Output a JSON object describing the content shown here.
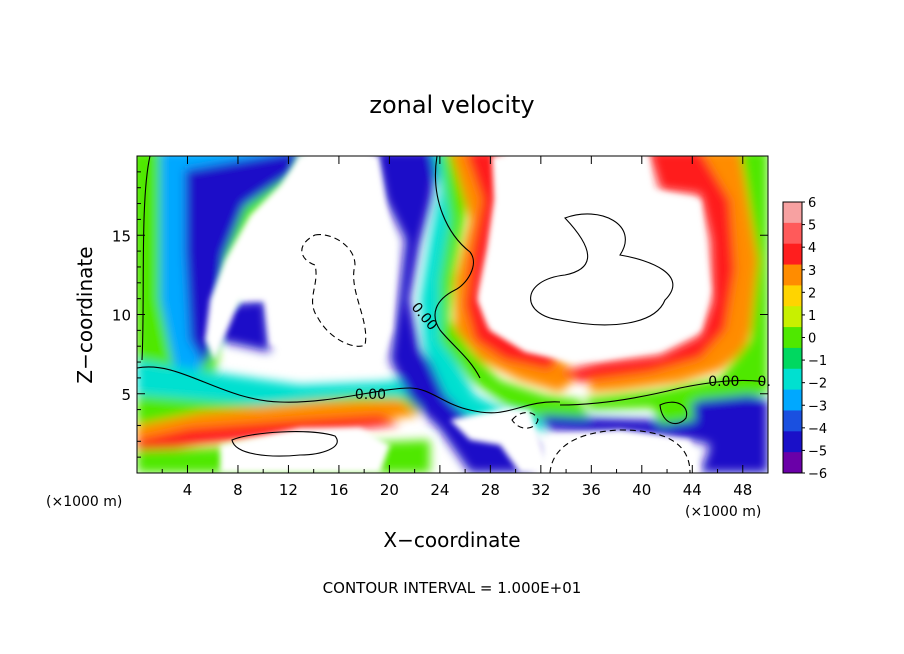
{
  "chart_data": {
    "type": "heatmap",
    "title": "zonal velocity",
    "xlabel": "X−coordinate",
    "ylabel": "Z−coordinate",
    "x_unit_label": "(×1000 m)",
    "y_unit_label": "(×1000 m)",
    "xlim": [
      0,
      50
    ],
    "ylim": [
      0,
      20
    ],
    "x_ticks": [
      4,
      8,
      12,
      16,
      20,
      24,
      28,
      32,
      36,
      40,
      44,
      48
    ],
    "y_ticks": [
      5,
      10,
      15
    ],
    "colorbar": {
      "ticks": [
        6,
        5,
        4,
        3,
        2,
        1,
        0,
        -1,
        -2,
        -3,
        -4,
        -5,
        -6
      ],
      "tick_labels": [
        "6",
        "5",
        "4",
        "3",
        "2",
        "1",
        "0",
        "−1",
        "−2",
        "−3",
        "−4",
        "−5",
        "−6"
      ],
      "range": [
        -6,
        6
      ],
      "colors": [
        "#f7a1a1",
        "#ff5a5a",
        "#ff1e1e",
        "#ff8c00",
        "#ffd400",
        "#c8f000",
        "#4fe800",
        "#00d860",
        "#00e0d0",
        "#00a8ff",
        "#1a50e0",
        "#1a10c8",
        "#6a00a8"
      ]
    },
    "contour_labels": [
      "0.00",
      "0.00",
      "0.00",
      "0."
    ],
    "contour_label_positions": [
      [
        18.5,
        5.0
      ],
      [
        22.8,
        9.9
      ],
      [
        46.5,
        5.8
      ],
      [
        49.7,
        5.8
      ]
    ],
    "annotation": "CONTOUR INTERVAL = 1.000E+01"
  }
}
